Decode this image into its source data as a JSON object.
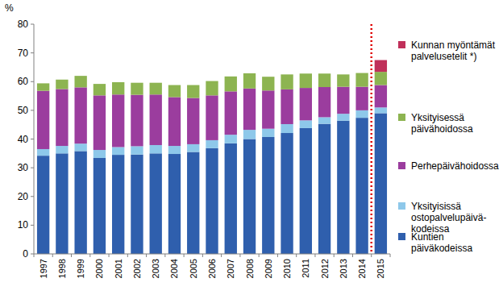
{
  "chart_data": {
    "type": "bar",
    "stacked": true,
    "grid": false,
    "y_label": "%",
    "categories": [
      "1997",
      "1998",
      "1999",
      "2000",
      "2001",
      "2002",
      "2003",
      "2004",
      "2005",
      "2006",
      "2007",
      "2008",
      "2009",
      "2010",
      "2011",
      "2012",
      "2013",
      "2014",
      "2015"
    ],
    "ylim": [
      0,
      80
    ],
    "yticks": [
      0,
      10,
      20,
      30,
      40,
      50,
      60,
      70,
      80
    ],
    "series": [
      {
        "name": "Kuntien\npäiväkodeissa",
        "color": "#2f5fad",
        "values": [
          34.2,
          35.0,
          35.8,
          33.4,
          34.5,
          34.6,
          35.0,
          34.8,
          35.5,
          36.8,
          38.5,
          40.0,
          40.7,
          42.1,
          43.8,
          45.3,
          46.4,
          47.4,
          49.0
        ]
      },
      {
        "name": "Yksityisissä\nostopalvelupäivä-\nkodeissa",
        "color": "#8ec8ea",
        "values": [
          2.3,
          2.6,
          2.6,
          2.8,
          2.7,
          2.9,
          2.9,
          2.8,
          2.7,
          2.8,
          3.0,
          3.2,
          2.9,
          3.1,
          2.7,
          2.3,
          2.4,
          2.6,
          2.0
        ]
      },
      {
        "name": "Perhepäivähoidossa",
        "color": "#9b3d9e",
        "values": [
          20.3,
          19.8,
          19.6,
          19.0,
          18.3,
          17.9,
          17.6,
          17.0,
          16.1,
          15.6,
          15.1,
          14.4,
          13.3,
          12.1,
          11.3,
          10.5,
          9.4,
          8.2,
          7.8
        ]
      },
      {
        "name": "Yksityisessä\npäivähoidossa",
        "color": "#8db451",
        "values": [
          2.6,
          3.3,
          4.0,
          4.0,
          4.3,
          4.2,
          4.1,
          4.2,
          4.5,
          5.0,
          5.2,
          5.3,
          4.8,
          5.2,
          5.0,
          4.7,
          4.3,
          4.8,
          4.6
        ]
      },
      {
        "name": "Kunnan myöntämät\npalvelusetelit *)",
        "color": "#c0305a",
        "values": [
          null,
          null,
          null,
          null,
          null,
          null,
          null,
          null,
          null,
          null,
          null,
          null,
          null,
          null,
          null,
          null,
          null,
          null,
          4.1
        ]
      }
    ]
  }
}
